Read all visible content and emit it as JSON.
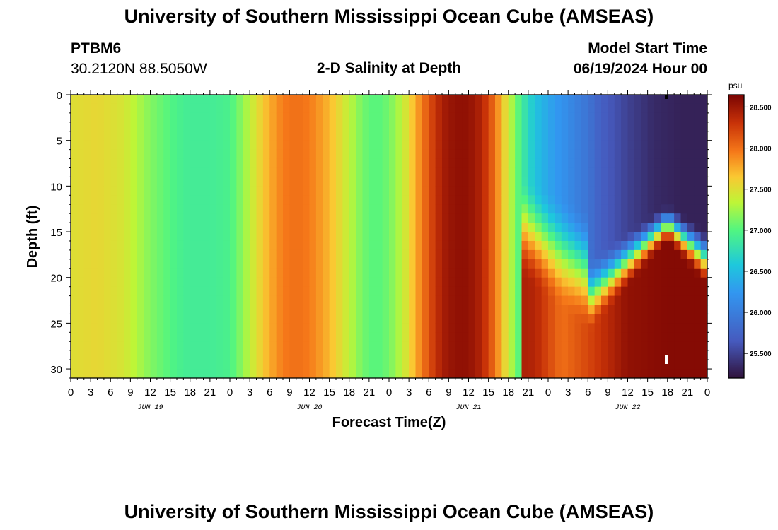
{
  "header": {
    "title_top": "University of Southern Mississippi Ocean Cube (AMSEAS)",
    "title_bottom": "University of Southern Mississippi Ocean Cube (AMSEAS)",
    "station": "PTBM6",
    "coords": "30.2120N  88.5050W",
    "subtitle": "2-D Salinity at Depth",
    "model_start_label": "Model Start Time",
    "model_start_value": "06/19/2024 Hour 00"
  },
  "chart_data": {
    "type": "heatmap",
    "title": "2-D Salinity at Depth",
    "xlabel": "Forecast Time(Z)",
    "ylabel": "Depth (ft)",
    "x_range_hours": [
      0,
      96
    ],
    "ylim": [
      0,
      31
    ],
    "y_ticks": [
      "0",
      "5",
      "10",
      "15",
      "20",
      "25",
      "30"
    ],
    "x_tick_labels": [
      "0",
      "3",
      "6",
      "9",
      "12",
      "15",
      "18",
      "21",
      "0",
      "3",
      "6",
      "9",
      "12",
      "15",
      "18",
      "21",
      "0",
      "3",
      "6",
      "9",
      "12",
      "15",
      "18",
      "21",
      "0",
      "3",
      "6",
      "9",
      "12",
      "15",
      "18",
      "21",
      "0"
    ],
    "date_labels": [
      "JUN 19",
      "JUN 20",
      "JUN 21",
      "JUN 22"
    ],
    "colorbar": {
      "unit": "psu",
      "range": [
        25.2,
        28.65
      ],
      "ticks": [
        "25.500",
        "26.000",
        "26.500",
        "27.000",
        "27.500",
        "28.000",
        "28.500"
      ]
    },
    "salinity_surface_by_hour": {
      "hours": [
        0,
        4,
        8,
        12,
        14,
        16,
        18,
        21,
        24,
        26,
        28,
        30,
        32,
        34,
        36,
        38,
        40,
        42,
        44,
        46,
        48,
        50,
        52,
        54,
        56,
        58,
        60,
        62,
        64,
        66,
        68,
        70,
        72,
        74,
        76,
        78,
        80,
        84,
        88,
        92,
        96
      ],
      "psu": [
        27.5,
        27.55,
        27.45,
        27.15,
        27.05,
        26.95,
        26.9,
        26.9,
        26.95,
        27.2,
        27.5,
        27.75,
        27.95,
        28.0,
        27.95,
        27.8,
        27.6,
        27.35,
        27.1,
        27.0,
        27.1,
        27.35,
        27.75,
        28.15,
        28.45,
        28.55,
        28.55,
        28.4,
        28.0,
        27.4,
        26.9,
        26.55,
        26.35,
        26.2,
        26.05,
        25.9,
        25.7,
        25.5,
        25.35,
        25.3,
        25.3
      ]
    },
    "salinity_bottom_by_hour": {
      "hours": [
        0,
        24,
        48,
        60,
        70,
        74,
        78,
        84,
        90,
        96
      ],
      "psu": [
        27.5,
        26.95,
        27.6,
        28.55,
        28.4,
        28.0,
        28.2,
        28.55,
        28.6,
        28.6
      ]
    }
  }
}
